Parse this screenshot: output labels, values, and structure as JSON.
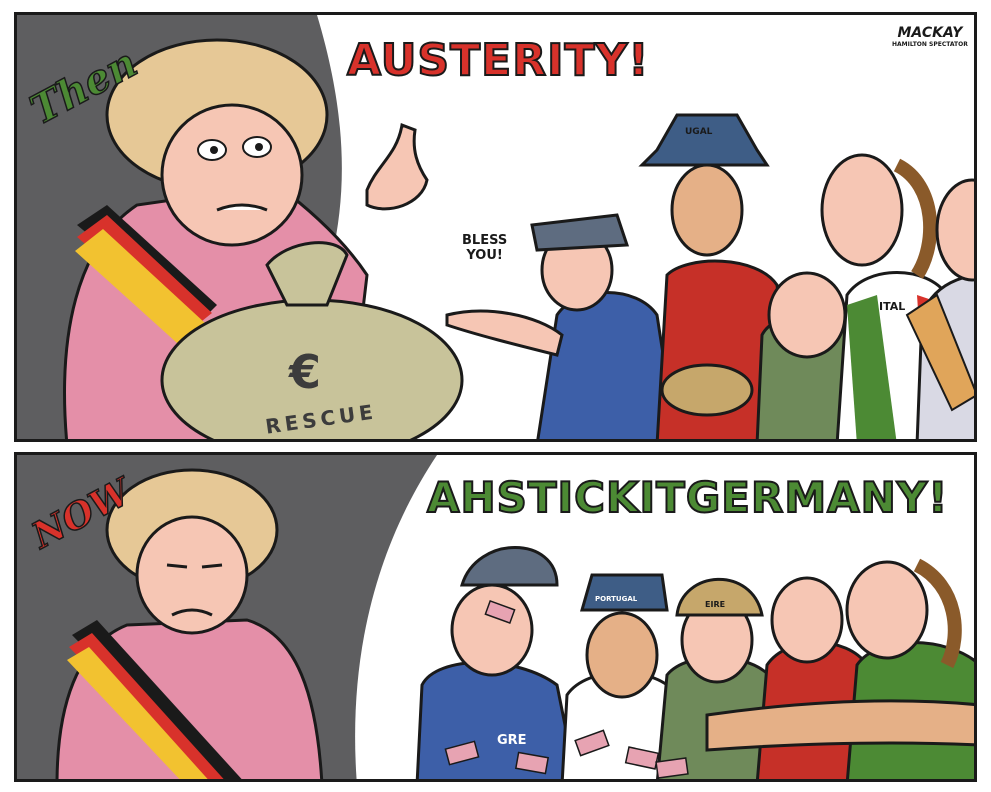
{
  "cartoon": {
    "signature": {
      "name": "MACKAY",
      "publication": "HAMILTON SPECTATOR"
    },
    "top_panel": {
      "label": "Then",
      "headline": "AUSTERITY!",
      "speech": [
        "BLESS",
        "YOU!"
      ],
      "bag_text": "RESCUE",
      "bag_symbol": "€",
      "hat_text": "UGAL",
      "shirt_text": "ITAL"
    },
    "bottom_panel": {
      "label": "NOW",
      "headline": "AHSTICKITGERMANY!",
      "shirt_text": "GRE",
      "hat_text_1": "PORTUGAL",
      "hat_text_2": "EIRE"
    },
    "colors": {
      "panel_bg": "#5e5e60",
      "headline_red": "#d8322b",
      "headline_green": "#4c8a34",
      "jacket_pink": "#e48fa8",
      "sash_black": "#1a1a1a",
      "sash_red": "#d8322b",
      "sash_gold": "#f2c230"
    }
  }
}
